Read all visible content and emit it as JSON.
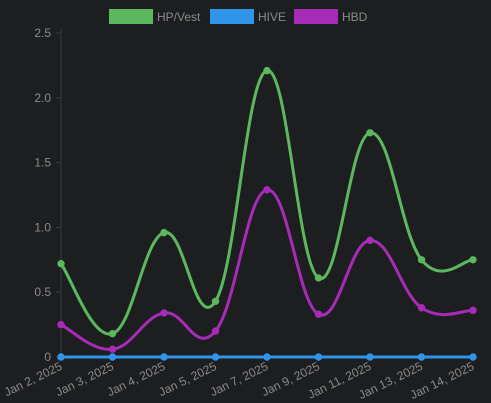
{
  "chart_data": {
    "type": "line",
    "categories": [
      "Jan 2, 2025",
      "Jan 3, 2025",
      "Jan 4, 2025",
      "Jan 5, 2025",
      "Jan 7, 2025",
      "Jan 9, 2025",
      "Jan 11, 2025",
      "Jan 13, 2025",
      "Jan 14, 2025"
    ],
    "series": [
      {
        "name": "HP/Vest",
        "color": "#5cb85c",
        "values": [
          0.72,
          0.18,
          0.96,
          0.43,
          2.21,
          0.61,
          1.73,
          0.75,
          0.75
        ]
      },
      {
        "name": "HIVE",
        "color": "#2f95eb",
        "values": [
          0,
          0,
          0,
          0,
          0,
          0,
          0,
          0,
          0
        ]
      },
      {
        "name": "HBD",
        "color": "#a72bb6",
        "values": [
          0.25,
          0.06,
          0.34,
          0.2,
          1.29,
          0.33,
          0.9,
          0.38,
          0.36
        ]
      }
    ],
    "y_ticks": [
      "0",
      "0.5",
      "1.0",
      "1.5",
      "2.0",
      "2.5"
    ],
    "ylim": [
      0,
      2.5
    ],
    "legend_position": "top",
    "grid": false
  }
}
